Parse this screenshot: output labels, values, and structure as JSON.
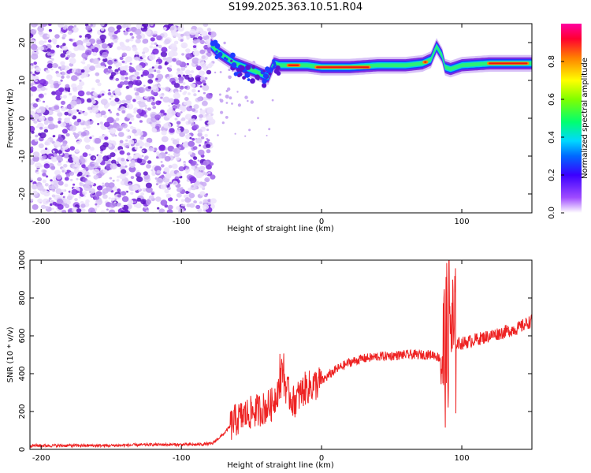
{
  "title": "S199.2025.363.10.51.R04",
  "colors": {
    "snr_line": "#ee2222",
    "axis": "#000000",
    "scatter_purple": "#7a1fd6",
    "scatter_light": "#d8bff5"
  },
  "chart_data": [
    {
      "type": "heatmap",
      "name": "spectrogram",
      "xlabel": "Height of straight line (km)",
      "ylabel": "Frequency (Hz)",
      "xlim": [
        -208,
        150
      ],
      "ylim": [
        -25,
        25
      ],
      "xticks": [
        "-200",
        "-100",
        "0",
        "100"
      ],
      "xtick_values": [
        -200,
        -100,
        0,
        100
      ],
      "yticks": [
        "-20",
        "-10",
        "0",
        "10",
        "20"
      ],
      "ytick_values": [
        -20,
        -10,
        0,
        10,
        20
      ],
      "colorbar": {
        "label": "Normalized spectral amplitude",
        "range": [
          0,
          1
        ],
        "ticks": [
          "0.0",
          "0.2",
          "0.4",
          "0.6",
          "0.8"
        ],
        "tick_values": [
          0.0,
          0.2,
          0.4,
          0.6,
          0.8
        ]
      },
      "noise_region": {
        "x": [
          -208,
          -77
        ],
        "y": [
          -25,
          25
        ]
      },
      "signal_track": {
        "x": [
          -79,
          -74,
          -68,
          -62,
          -55,
          -48,
          -42,
          -38,
          -34,
          -30,
          -20,
          -10,
          0,
          20,
          40,
          60,
          72,
          78,
          82,
          86,
          88,
          92,
          100,
          120,
          150
        ],
        "freq": [
          19.5,
          17.5,
          16,
          14.5,
          13.5,
          12.5,
          11.5,
          11,
          14.5,
          14,
          14,
          14,
          13.5,
          13.5,
          14,
          14,
          14.5,
          15.5,
          19,
          16.5,
          13.5,
          13,
          14,
          14.5,
          14.5
        ]
      }
    },
    {
      "type": "line",
      "name": "snr",
      "xlabel": "Height of straight line (km)",
      "ylabel": "SNR (10 * v/v)",
      "xlim": [
        -208,
        150
      ],
      "ylim": [
        0,
        1000
      ],
      "xticks": [
        "-200",
        "-100",
        "0",
        "100"
      ],
      "xtick_values": [
        -200,
        -100,
        0,
        100
      ],
      "yticks": [
        "0",
        "200",
        "400",
        "600",
        "800",
        "1000"
      ],
      "ytick_values": [
        0,
        200,
        400,
        600,
        800,
        1000
      ],
      "series": [
        {
          "name": "SNR",
          "x": [
            -208,
            -180,
            -150,
            -120,
            -90,
            -78,
            -70,
            -62,
            -55,
            -48,
            -40,
            -35,
            -28,
            -24,
            -20,
            -12,
            -5,
            0,
            10,
            20,
            30,
            40,
            50,
            60,
            70,
            80,
            85,
            88,
            90,
            92,
            94,
            96,
            100,
            110,
            120,
            130,
            140,
            145,
            150
          ],
          "y": [
            20,
            20,
            20,
            25,
            25,
            30,
            80,
            150,
            180,
            200,
            220,
            240,
            380,
            300,
            250,
            320,
            340,
            360,
            420,
            460,
            480,
            490,
            495,
            500,
            500,
            500,
            480,
            520,
            600,
            700,
            550,
            560,
            560,
            580,
            600,
            620,
            640,
            660,
            680
          ]
        }
      ]
    }
  ]
}
